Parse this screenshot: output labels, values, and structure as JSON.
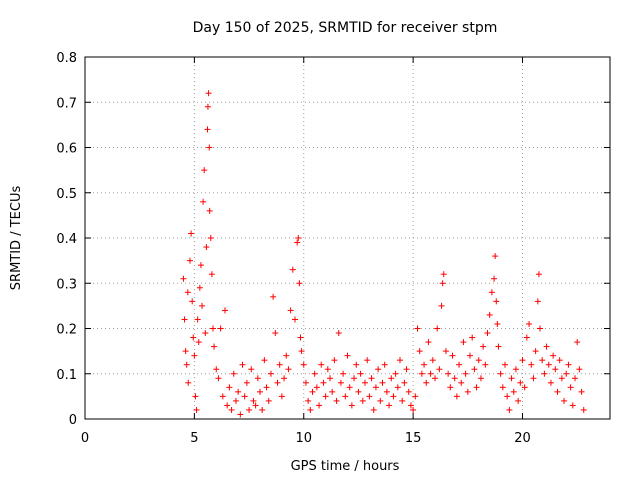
{
  "chart_data": {
    "type": "scatter",
    "title": "Day 150 of 2025, SRMTID for receiver stpm",
    "xlabel": "GPS time / hours",
    "ylabel": "SRMTID / TECUs",
    "xlim": [
      0,
      24
    ],
    "ylim": [
      0,
      0.8
    ],
    "x_ticks": [
      0,
      5,
      10,
      15,
      20
    ],
    "x_tick_labels": [
      "0",
      "5",
      "10",
      "15",
      "20"
    ],
    "y_ticks": [
      0,
      0.1,
      0.2,
      0.3,
      0.4,
      0.5,
      0.6,
      0.7,
      0.8
    ],
    "y_tick_labels": [
      "0",
      "0.1",
      "0.2",
      "0.3",
      "0.4",
      "0.5",
      "0.6",
      "0.7",
      "0.8"
    ],
    "grid": true,
    "marker": "plus",
    "color": "#ff0000",
    "series": [
      {
        "name": "SRMTID",
        "points": [
          [
            4.5,
            0.31
          ],
          [
            4.55,
            0.22
          ],
          [
            4.6,
            0.15
          ],
          [
            4.65,
            0.12
          ],
          [
            4.7,
            0.28
          ],
          [
            4.72,
            0.08
          ],
          [
            4.8,
            0.35
          ],
          [
            4.85,
            0.41
          ],
          [
            4.9,
            0.26
          ],
          [
            4.95,
            0.18
          ],
          [
            5.0,
            0.14
          ],
          [
            5.05,
            0.05
          ],
          [
            5.1,
            0.02
          ],
          [
            5.15,
            0.22
          ],
          [
            5.2,
            0.17
          ],
          [
            5.25,
            0.29
          ],
          [
            5.3,
            0.34
          ],
          [
            5.35,
            0.25
          ],
          [
            5.4,
            0.48
          ],
          [
            5.45,
            0.55
          ],
          [
            5.5,
            0.19
          ],
          [
            5.55,
            0.38
          ],
          [
            5.6,
            0.64
          ],
          [
            5.62,
            0.69
          ],
          [
            5.65,
            0.72
          ],
          [
            5.68,
            0.6
          ],
          [
            5.7,
            0.46
          ],
          [
            5.75,
            0.4
          ],
          [
            5.8,
            0.32
          ],
          [
            5.85,
            0.2
          ],
          [
            5.9,
            0.16
          ],
          [
            6.0,
            0.11
          ],
          [
            6.1,
            0.09
          ],
          [
            6.2,
            0.2
          ],
          [
            6.3,
            0.05
          ],
          [
            6.4,
            0.24
          ],
          [
            6.5,
            0.03
          ],
          [
            6.6,
            0.07
          ],
          [
            6.7,
            0.02
          ],
          [
            6.8,
            0.1
          ],
          [
            6.9,
            0.04
          ],
          [
            7.0,
            0.06
          ],
          [
            7.1,
            0.01
          ],
          [
            7.2,
            0.12
          ],
          [
            7.3,
            0.05
          ],
          [
            7.4,
            0.08
          ],
          [
            7.5,
            0.02
          ],
          [
            7.6,
            0.11
          ],
          [
            7.7,
            0.04
          ],
          [
            7.8,
            0.03
          ],
          [
            7.9,
            0.09
          ],
          [
            8.0,
            0.06
          ],
          [
            8.1,
            0.02
          ],
          [
            8.2,
            0.13
          ],
          [
            8.3,
            0.07
          ],
          [
            8.4,
            0.04
          ],
          [
            8.5,
            0.1
          ],
          [
            8.6,
            0.27
          ],
          [
            8.7,
            0.19
          ],
          [
            8.8,
            0.08
          ],
          [
            8.9,
            0.12
          ],
          [
            9.0,
            0.05
          ],
          [
            9.1,
            0.09
          ],
          [
            9.2,
            0.14
          ],
          [
            9.3,
            0.11
          ],
          [
            9.4,
            0.24
          ],
          [
            9.5,
            0.33
          ],
          [
            9.6,
            0.22
          ],
          [
            9.7,
            0.39
          ],
          [
            9.75,
            0.4
          ],
          [
            9.8,
            0.3
          ],
          [
            9.85,
            0.18
          ],
          [
            9.9,
            0.15
          ],
          [
            10.0,
            0.12
          ],
          [
            10.1,
            0.08
          ],
          [
            10.2,
            0.04
          ],
          [
            10.3,
            0.02
          ],
          [
            10.4,
            0.06
          ],
          [
            10.5,
            0.1
          ],
          [
            10.6,
            0.07
          ],
          [
            10.7,
            0.03
          ],
          [
            10.8,
            0.12
          ],
          [
            10.9,
            0.08
          ],
          [
            11.0,
            0.05
          ],
          [
            11.1,
            0.11
          ],
          [
            11.2,
            0.09
          ],
          [
            11.3,
            0.06
          ],
          [
            11.4,
            0.13
          ],
          [
            11.5,
            0.04
          ],
          [
            11.6,
            0.19
          ],
          [
            11.7,
            0.08
          ],
          [
            11.8,
            0.1
          ],
          [
            11.9,
            0.05
          ],
          [
            12.0,
            0.14
          ],
          [
            12.1,
            0.07
          ],
          [
            12.2,
            0.03
          ],
          [
            12.3,
            0.09
          ],
          [
            12.4,
            0.12
          ],
          [
            12.5,
            0.06
          ],
          [
            12.6,
            0.1
          ],
          [
            12.7,
            0.04
          ],
          [
            12.8,
            0.08
          ],
          [
            12.9,
            0.13
          ],
          [
            13.0,
            0.05
          ],
          [
            13.1,
            0.09
          ],
          [
            13.2,
            0.02
          ],
          [
            13.3,
            0.07
          ],
          [
            13.4,
            0.11
          ],
          [
            13.5,
            0.04
          ],
          [
            13.6,
            0.08
          ],
          [
            13.7,
            0.12
          ],
          [
            13.8,
            0.06
          ],
          [
            13.9,
            0.03
          ],
          [
            14.0,
            0.09
          ],
          [
            14.1,
            0.05
          ],
          [
            14.2,
            0.1
          ],
          [
            14.3,
            0.07
          ],
          [
            14.4,
            0.13
          ],
          [
            14.5,
            0.04
          ],
          [
            14.6,
            0.08
          ],
          [
            14.7,
            0.11
          ],
          [
            14.8,
            0.06
          ],
          [
            14.9,
            0.03
          ],
          [
            15.0,
            0.02
          ],
          [
            15.1,
            0.05
          ],
          [
            15.2,
            0.2
          ],
          [
            15.3,
            0.15
          ],
          [
            15.4,
            0.1
          ],
          [
            15.5,
            0.12
          ],
          [
            15.6,
            0.08
          ],
          [
            15.7,
            0.17
          ],
          [
            15.8,
            0.1
          ],
          [
            15.9,
            0.13
          ],
          [
            16.0,
            0.09
          ],
          [
            16.1,
            0.2
          ],
          [
            16.2,
            0.11
          ],
          [
            16.3,
            0.25
          ],
          [
            16.35,
            0.3
          ],
          [
            16.4,
            0.32
          ],
          [
            16.5,
            0.15
          ],
          [
            16.6,
            0.1
          ],
          [
            16.7,
            0.07
          ],
          [
            16.8,
            0.14
          ],
          [
            16.9,
            0.09
          ],
          [
            17.0,
            0.05
          ],
          [
            17.1,
            0.12
          ],
          [
            17.2,
            0.08
          ],
          [
            17.3,
            0.17
          ],
          [
            17.4,
            0.1
          ],
          [
            17.5,
            0.06
          ],
          [
            17.6,
            0.14
          ],
          [
            17.7,
            0.18
          ],
          [
            17.8,
            0.11
          ],
          [
            17.9,
            0.07
          ],
          [
            18.0,
            0.13
          ],
          [
            18.1,
            0.09
          ],
          [
            18.2,
            0.16
          ],
          [
            18.3,
            0.12
          ],
          [
            18.4,
            0.19
          ],
          [
            18.5,
            0.23
          ],
          [
            18.6,
            0.28
          ],
          [
            18.7,
            0.31
          ],
          [
            18.75,
            0.36
          ],
          [
            18.8,
            0.26
          ],
          [
            18.85,
            0.21
          ],
          [
            18.9,
            0.16
          ],
          [
            19.0,
            0.1
          ],
          [
            19.1,
            0.07
          ],
          [
            19.2,
            0.12
          ],
          [
            19.3,
            0.05
          ],
          [
            19.4,
            0.02
          ],
          [
            19.5,
            0.09
          ],
          [
            19.6,
            0.06
          ],
          [
            19.7,
            0.11
          ],
          [
            19.8,
            0.04
          ],
          [
            19.9,
            0.08
          ],
          [
            20.0,
            0.13
          ],
          [
            20.1,
            0.07
          ],
          [
            20.2,
            0.18
          ],
          [
            20.3,
            0.21
          ],
          [
            20.4,
            0.12
          ],
          [
            20.5,
            0.09
          ],
          [
            20.6,
            0.15
          ],
          [
            20.7,
            0.26
          ],
          [
            20.75,
            0.32
          ],
          [
            20.8,
            0.2
          ],
          [
            20.9,
            0.13
          ],
          [
            21.0,
            0.1
          ],
          [
            21.1,
            0.16
          ],
          [
            21.2,
            0.12
          ],
          [
            21.3,
            0.08
          ],
          [
            21.4,
            0.14
          ],
          [
            21.5,
            0.11
          ],
          [
            21.6,
            0.06
          ],
          [
            21.7,
            0.13
          ],
          [
            21.8,
            0.09
          ],
          [
            21.9,
            0.04
          ],
          [
            22.0,
            0.1
          ],
          [
            22.1,
            0.12
          ],
          [
            22.2,
            0.07
          ],
          [
            22.3,
            0.03
          ],
          [
            22.4,
            0.09
          ],
          [
            22.5,
            0.17
          ],
          [
            22.6,
            0.11
          ],
          [
            22.7,
            0.06
          ],
          [
            22.8,
            0.02
          ]
        ]
      }
    ]
  }
}
